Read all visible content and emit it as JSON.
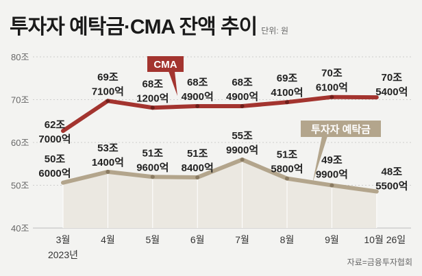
{
  "chart_data": {
    "type": "line",
    "title": "투자자 예탁금·CMA 잔액 추이",
    "unit_label": "단위: 원",
    "source": "자료=금융투자협회",
    "categories": [
      "3월",
      "4월",
      "5월",
      "6월",
      "7월",
      "8월",
      "9월",
      "10월 26일"
    ],
    "year_label": "2023년",
    "ylim": [
      40,
      80
    ],
    "yticks": [
      {
        "value": 80,
        "label": "80조"
      },
      {
        "value": 70,
        "label": "70조"
      },
      {
        "value": 60,
        "label": "60조"
      },
      {
        "value": 50,
        "label": "50조"
      },
      {
        "value": 40,
        "label": "40조"
      }
    ],
    "grid": true,
    "series": [
      {
        "name": "CMA",
        "color": "#a3342f",
        "values": [
          62.7,
          69.71,
          68.12,
          68.49,
          68.49,
          69.41,
          70.61,
          70.54
        ],
        "labels": [
          [
            "62조",
            "7000억"
          ],
          [
            "69조",
            "7100억"
          ],
          [
            "68조",
            "1200억"
          ],
          [
            "68조",
            "4900억"
          ],
          [
            "68조",
            "4900억"
          ],
          [
            "69조",
            "4100억"
          ],
          [
            "70조",
            "6100억"
          ],
          [
            "70조",
            "5400억"
          ]
        ]
      },
      {
        "name": "투자자 예탁금",
        "color": "#b3a58c",
        "values": [
          50.6,
          53.14,
          51.96,
          51.84,
          55.99,
          51.58,
          49.99,
          48.55
        ],
        "labels": [
          [
            "50조",
            "6000억"
          ],
          [
            "53조",
            "1400억"
          ],
          [
            "51조",
            "9600억"
          ],
          [
            "51조",
            "8400억"
          ],
          [
            "55조",
            "9900억"
          ],
          [
            "51조",
            "5800억"
          ],
          [
            "49조",
            "9900억"
          ],
          [
            "48조",
            "5500억"
          ]
        ]
      }
    ]
  }
}
